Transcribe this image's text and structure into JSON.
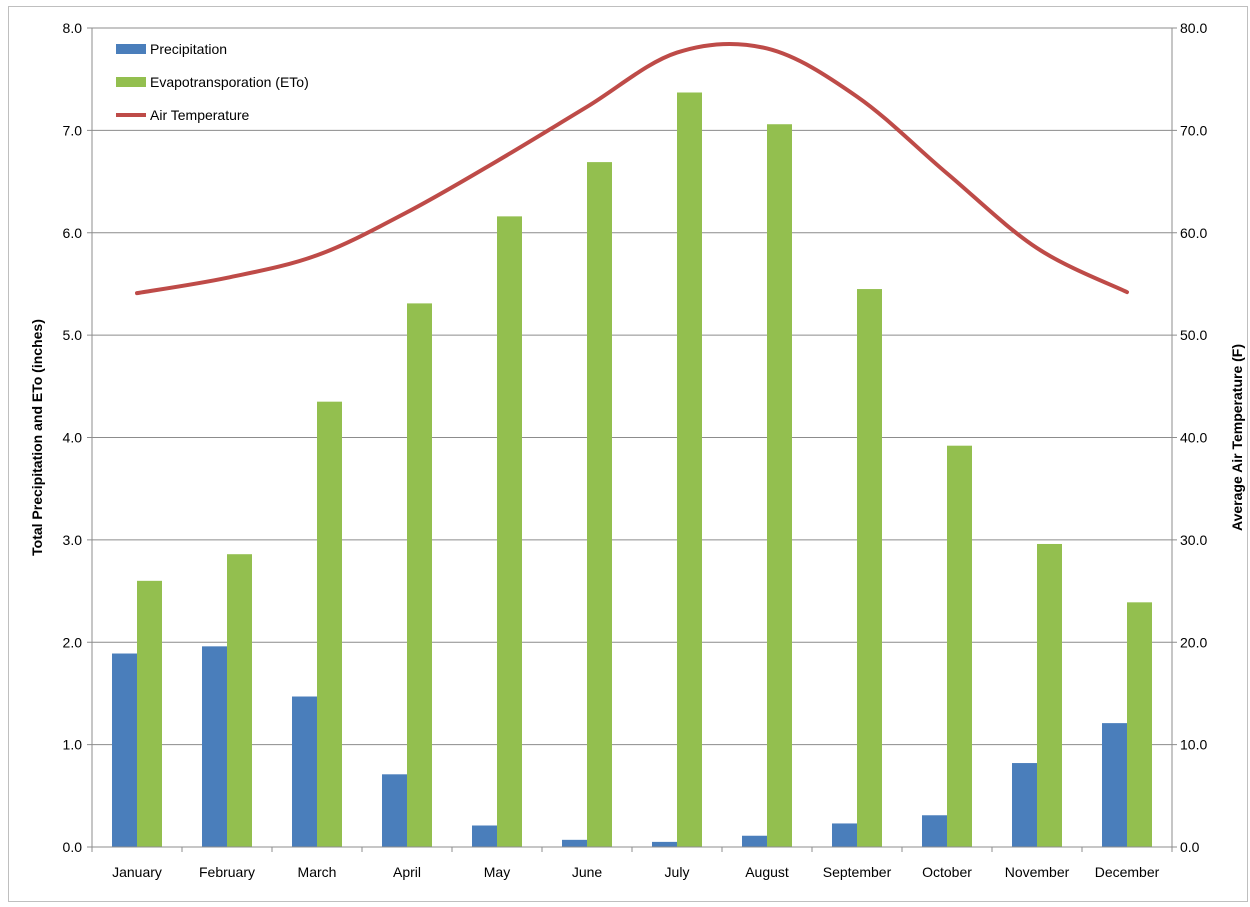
{
  "chart_data": {
    "type": "bar",
    "categories": [
      "January",
      "February",
      "March",
      "April",
      "May",
      "June",
      "July",
      "August",
      "September",
      "October",
      "November",
      "December"
    ],
    "series": [
      {
        "name": "Precipitation",
        "kind": "bar",
        "axis": "left",
        "color": "#4a7ebb",
        "values": [
          1.89,
          1.96,
          1.47,
          0.71,
          0.21,
          0.07,
          0.05,
          0.11,
          0.23,
          0.31,
          0.82,
          1.21
        ]
      },
      {
        "name": "Evapotransporation (ETo)",
        "kind": "bar",
        "axis": "left",
        "color": "#93bf4f",
        "values": [
          2.6,
          2.86,
          4.35,
          5.31,
          6.16,
          6.69,
          7.37,
          7.06,
          5.45,
          3.92,
          2.96,
          2.39
        ]
      },
      {
        "name": "Air Temperature",
        "kind": "line",
        "axis": "right",
        "color": "#be4b48",
        "values": [
          54.1,
          55.6,
          57.8,
          62.0,
          67.0,
          72.3,
          77.6,
          78.0,
          73.3,
          65.8,
          58.5,
          54.2
        ]
      }
    ],
    "ylabel": "Total Precipitation and ETo (inches)",
    "y2label": "Average Air Temperature (F)",
    "ylim": [
      0,
      8
    ],
    "y2lim": [
      0,
      80
    ],
    "yticks": [
      "0.0",
      "1.0",
      "2.0",
      "3.0",
      "4.0",
      "5.0",
      "6.0",
      "7.0",
      "8.0"
    ],
    "y2ticks": [
      "0.0",
      "10.0",
      "20.0",
      "30.0",
      "40.0",
      "50.0",
      "60.0",
      "70.0",
      "80.0"
    ],
    "grid": true,
    "legend_position": "top-left"
  }
}
